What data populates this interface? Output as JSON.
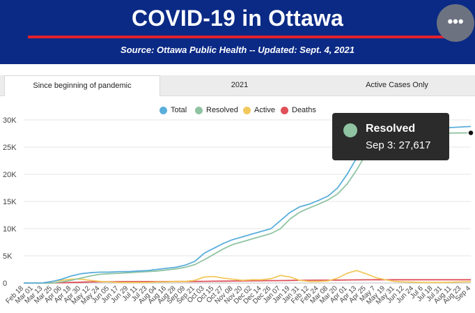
{
  "header": {
    "title": "COVID-19 in Ottawa",
    "source": "Source:  Ottawa Public Health -- Updated:  Sept. 4, 2021",
    "menu_label": "•••"
  },
  "tabs": [
    {
      "label": "Since beginning of pandemic",
      "active": true
    },
    {
      "label": "2021",
      "active": false
    },
    {
      "label": "Active Cases Only",
      "active": false
    }
  ],
  "colors": {
    "header_bg": "#0b2a86",
    "accent_rule": "#e4202c",
    "total": "#5aaedc",
    "resolved": "#8fc3a2",
    "active": "#f1c85c",
    "deaths": "#e0505a"
  },
  "tooltip": {
    "series": "Resolved",
    "text": "Sep 3: 27,617"
  },
  "chart_data": {
    "type": "line",
    "title": "",
    "xlabel": "",
    "ylabel": "",
    "ylim": [
      0,
      30000
    ],
    "y_ticks": [
      0,
      5000,
      10000,
      15000,
      20000,
      25000,
      30000
    ],
    "y_tick_labels": [
      "0",
      "5K",
      "10K",
      "15K",
      "20K",
      "25K",
      "30K"
    ],
    "grid": true,
    "legend": "top-center",
    "x_tick_labels": [
      "Feb 18",
      "Mar 01",
      "Mar 13",
      "Mar 25",
      "Apr 06",
      "Apr 18",
      "Apr 30",
      "May 12",
      "May 24",
      "Jun 05",
      "Jun 17",
      "Jun 29",
      "Jul 11",
      "Jul 23",
      "Aug 04",
      "Aug 16",
      "Aug 28",
      "Sep 09",
      "Sep 21",
      "Oct 03",
      "Oct 15",
      "Oct 27",
      "Nov 08",
      "Nov 20",
      "Dec 02",
      "Dec 14",
      "Dec 26",
      "Jan 07",
      "Jan 19",
      "Jan 31",
      "Feb 12",
      "Feb 24",
      "Mar 08",
      "Mar 20",
      "Apr 01",
      "Apr 13",
      "Apr 25",
      "May 7",
      "May 19",
      "May 31",
      "Jun 12",
      "Jun 24",
      "Jul 6",
      "Jul 18",
      "Jul 31",
      "Aug 11",
      "Aug 23",
      "Sep 4"
    ],
    "series": [
      {
        "name": "Total",
        "color": "#5aaedc",
        "values": [
          0,
          0,
          10,
          300,
          700,
          1300,
          1700,
          1900,
          2000,
          2000,
          2100,
          2100,
          2200,
          2300,
          2500,
          2700,
          2900,
          3300,
          4000,
          5500,
          6400,
          7300,
          8000,
          8500,
          9000,
          9500,
          10000,
          11500,
          13000,
          14000,
          14500,
          15200,
          16000,
          17500,
          20000,
          23000,
          26000,
          27500,
          27900,
          28000,
          28100,
          28200,
          28300,
          28400,
          28500,
          28600,
          28700,
          28800
        ]
      },
      {
        "name": "Resolved",
        "color": "#8fc3a2",
        "values": [
          0,
          0,
          0,
          0,
          200,
          500,
          900,
          1300,
          1600,
          1700,
          1800,
          1900,
          2000,
          2100,
          2200,
          2400,
          2600,
          2900,
          3400,
          4300,
          5300,
          6300,
          7100,
          7600,
          8100,
          8600,
          9100,
          10000,
          11800,
          13000,
          13800,
          14500,
          15300,
          16400,
          18200,
          20800,
          23800,
          26000,
          27000,
          27300,
          27400,
          27450,
          27500,
          27520,
          27550,
          27580,
          27600,
          27617
        ]
      },
      {
        "name": "Active",
        "color": "#f1c85c",
        "values": [
          0,
          0,
          10,
          300,
          500,
          700,
          700,
          500,
          300,
          200,
          100,
          100,
          100,
          100,
          200,
          200,
          300,
          300,
          500,
          1100,
          1200,
          900,
          700,
          500,
          600,
          600,
          800,
          1400,
          1100,
          500,
          300,
          300,
          400,
          900,
          1800,
          2300,
          1700,
          1000,
          600,
          300,
          200,
          150,
          100,
          100,
          100,
          150,
          200,
          250
        ]
      },
      {
        "name": "Deaths",
        "color": "#e0505a",
        "values": [
          0,
          0,
          0,
          10,
          50,
          100,
          150,
          200,
          230,
          250,
          260,
          265,
          268,
          270,
          272,
          275,
          278,
          280,
          290,
          310,
          330,
          350,
          370,
          390,
          410,
          420,
          430,
          450,
          480,
          500,
          510,
          520,
          530,
          540,
          560,
          580,
          590,
          600,
          600,
          600,
          600,
          600,
          600,
          600,
          600,
          600,
          600,
          600
        ]
      }
    ]
  }
}
